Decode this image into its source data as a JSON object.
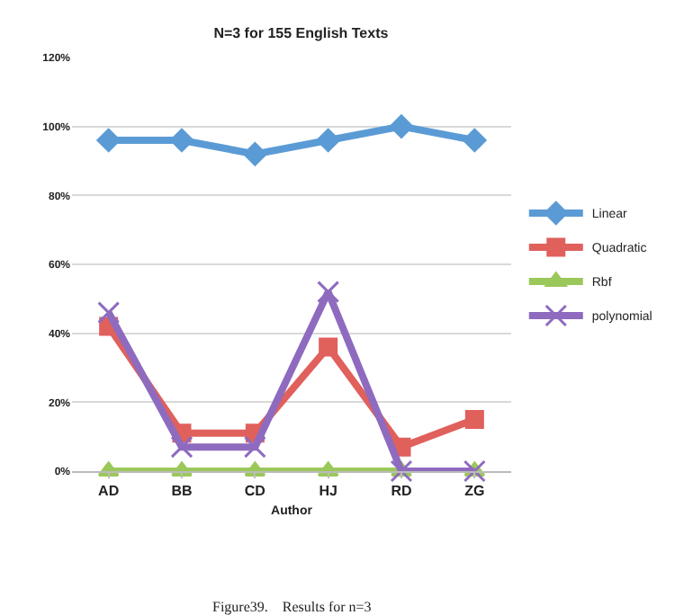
{
  "chart_data": {
    "type": "line",
    "title": "N=3 for 155 English Texts",
    "xlabel": "Author",
    "categories": [
      "AD",
      "BB",
      "CD",
      "HJ",
      "RD",
      "ZG"
    ],
    "series": [
      {
        "name": "Linear",
        "color": "#5b9bd5",
        "marker": "diamond",
        "values": [
          96,
          96,
          92,
          96,
          100,
          96
        ]
      },
      {
        "name": "Quadratic",
        "color": "#e0605c",
        "marker": "square",
        "values": [
          42,
          11,
          11,
          36,
          7,
          15
        ]
      },
      {
        "name": "Rbf",
        "color": "#9bc85a",
        "marker": "triangle",
        "values": [
          0,
          0,
          0,
          0,
          0,
          0
        ]
      },
      {
        "name": "polynomial",
        "color": "#8e6bbf",
        "marker": "cross",
        "values": [
          46,
          7,
          7,
          52,
          0,
          0
        ]
      }
    ],
    "ylim": [
      0,
      120
    ],
    "yticks": [
      {
        "value": 0,
        "label": "0%"
      },
      {
        "value": 20,
        "label": "20%"
      },
      {
        "value": 40,
        "label": "40%"
      },
      {
        "value": 60,
        "label": "60%"
      },
      {
        "value": 80,
        "label": "80%"
      },
      {
        "value": 100,
        "label": "100%"
      },
      {
        "value": 120,
        "label": "120%"
      }
    ],
    "grid": "y",
    "legend": "right",
    "annotations": [
      "Figure39.    Results for n=3"
    ]
  }
}
